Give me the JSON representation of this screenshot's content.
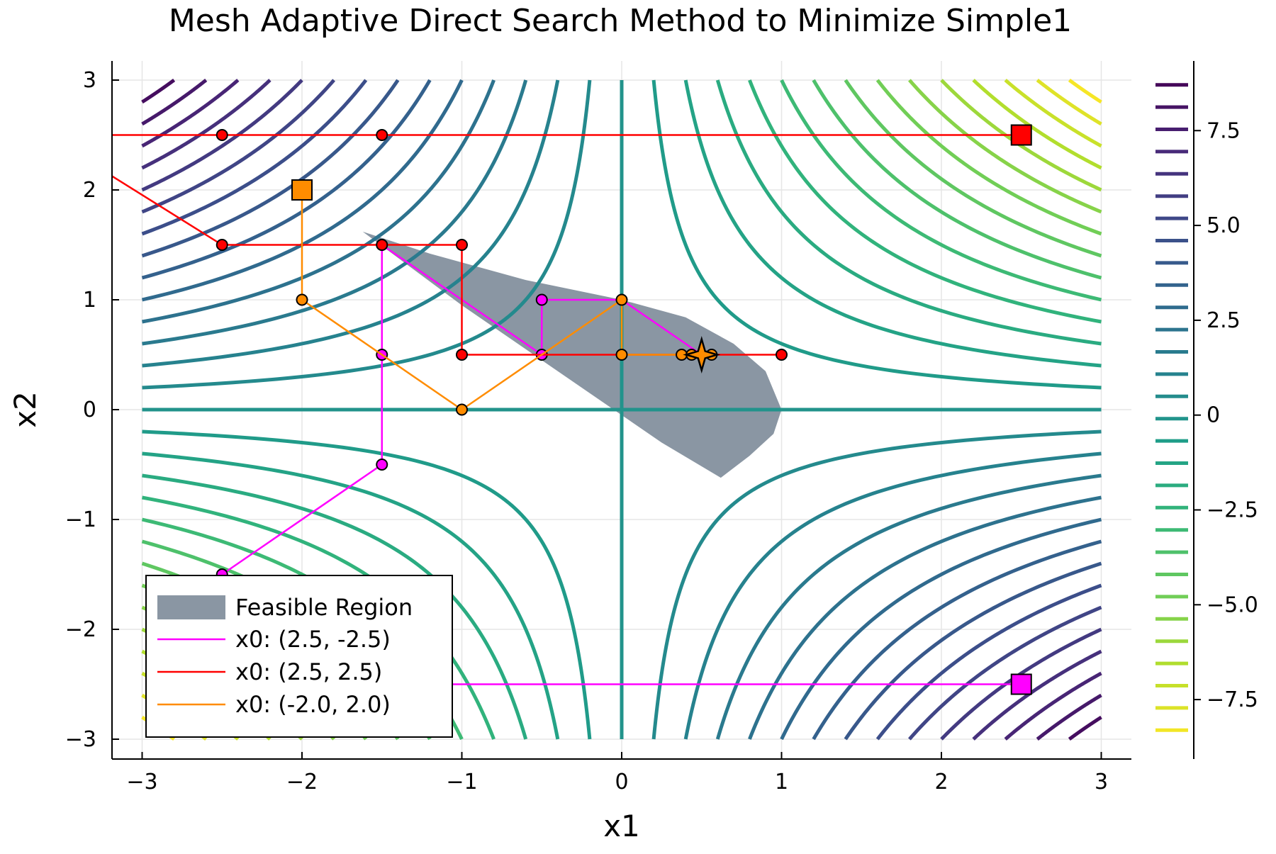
{
  "chart_data": {
    "type": "contour",
    "title": "Mesh Adaptive Direct Search Method to Minimize Simple1",
    "xlabel": "x1",
    "ylabel": "x2",
    "xlim": [
      -3.18,
      3.18
    ],
    "ylim": [
      -3.18,
      3.18
    ],
    "x_ticks": [
      -3,
      -2,
      -1,
      0,
      1,
      2,
      3
    ],
    "y_ticks": [
      -3,
      -2,
      -1,
      0,
      1,
      2,
      3
    ],
    "x_tick_labels": [
      "−3",
      "−2",
      "−1",
      "0",
      "1",
      "2",
      "3"
    ],
    "y_tick_labels": [
      "−3",
      "−2",
      "−1",
      "0",
      "1",
      "2",
      "3"
    ],
    "grid": true,
    "contour": {
      "function": "-x1*x2",
      "domain": [
        -3,
        3
      ],
      "levels": [
        -8.4,
        -7.8,
        -7.2,
        -6.6,
        -6.0,
        -5.4,
        -4.8,
        -4.2,
        -3.6,
        -3.0,
        -2.4,
        -1.8,
        -1.2,
        -0.6,
        0,
        0.6,
        1.2,
        1.8,
        2.4,
        3.0,
        3.6,
        4.2,
        4.8,
        5.4,
        6.0,
        6.6,
        7.2,
        7.8,
        8.4
      ],
      "colormap": "viridis-reversed"
    },
    "colorbar": {
      "range": [
        -8.6,
        9.0
      ],
      "ticks": [
        -7.5,
        -5.0,
        -2.5,
        0,
        2.5,
        5.0,
        7.5
      ],
      "tick_labels": [
        "−7.5",
        "−5.0",
        "−2.5",
        "0",
        "2.5",
        "5.0",
        "7.5"
      ]
    },
    "feasible_region": {
      "name": "Feasible Region",
      "color": "#8a96a3",
      "boundary": [
        [
          -1.62,
          1.62
        ],
        [
          -1.2,
          1.42
        ],
        [
          -0.6,
          1.18
        ],
        [
          0,
          1.0
        ],
        [
          0.4,
          0.84
        ],
        [
          0.7,
          0.6
        ],
        [
          0.9,
          0.35
        ],
        [
          1.0,
          0.0
        ],
        [
          0.95,
          -0.22
        ],
        [
          0.8,
          -0.42
        ],
        [
          0.62,
          -0.62
        ],
        [
          0.25,
          -0.3
        ],
        [
          0,
          -0.05
        ],
        [
          -0.5,
          0.45
        ],
        [
          -1.0,
          0.95
        ],
        [
          -1.62,
          1.62
        ]
      ]
    },
    "series": [
      {
        "name": "x0: (2.5, -2.5)",
        "color": "#ff00ff",
        "start": [
          2.5,
          -2.5
        ],
        "path": [
          [
            2.5,
            -2.5
          ],
          [
            -2.5,
            -2.5
          ],
          [
            -2.5,
            -1.5
          ],
          [
            -1.5,
            -0.5
          ],
          [
            -1.5,
            0.5
          ],
          [
            -1.5,
            1.5
          ],
          [
            -0.5,
            0.5
          ],
          [
            -0.5,
            1.0
          ],
          [
            0,
            1.0
          ],
          [
            0.5,
            0.5
          ]
        ],
        "points": [
          [
            -2.5,
            -1.5
          ],
          [
            -1.5,
            -0.5
          ],
          [
            -1.5,
            0.5
          ],
          [
            -1.5,
            1.5
          ],
          [
            -0.5,
            0.5
          ],
          [
            -0.5,
            1.0
          ]
        ]
      },
      {
        "name": "x0: (2.5, 2.5)",
        "color": "#ff0000",
        "start": [
          2.5,
          2.5
        ],
        "path": [
          [
            2.5,
            2.5
          ],
          [
            -3.6,
            2.5
          ],
          [
            -2.5,
            1.5
          ],
          [
            -1.0,
            1.5
          ],
          [
            -1.0,
            0.5
          ],
          [
            1.0,
            0.5
          ]
        ],
        "points": [
          [
            -2.5,
            2.5
          ],
          [
            -1.5,
            2.5
          ],
          [
            -2.5,
            1.5
          ],
          [
            -1.5,
            1.5
          ],
          [
            -1.0,
            1.5
          ],
          [
            -1.0,
            0.5
          ],
          [
            1.0,
            0.5
          ]
        ]
      },
      {
        "name": "x0: (-2.0, 2.0)",
        "color": "#ff8c00",
        "start": [
          -2.0,
          2.0
        ],
        "path": [
          [
            -2.0,
            2.0
          ],
          [
            -2.0,
            1.0
          ],
          [
            -1.0,
            0.0
          ],
          [
            -0.5,
            0.5
          ],
          [
            0,
            1.0
          ],
          [
            0,
            0.5
          ],
          [
            0.375,
            0.5
          ],
          [
            0.5625,
            0.5
          ]
        ],
        "points": [
          [
            -2.0,
            1.0
          ],
          [
            -1.0,
            0.0
          ],
          [
            0,
            1.0
          ],
          [
            0,
            0.5
          ],
          [
            0.375,
            0.5
          ],
          [
            0.4375,
            0.5
          ],
          [
            0.5625,
            0.5
          ]
        ]
      }
    ],
    "optimum": [
      0.5,
      0.5
    ],
    "legend": {
      "position": "bottom-left",
      "entries": [
        "Feasible Region",
        "x0: (2.5, -2.5)",
        "x0: (2.5, 2.5)",
        "x0: (-2.0, 2.0)"
      ]
    }
  }
}
